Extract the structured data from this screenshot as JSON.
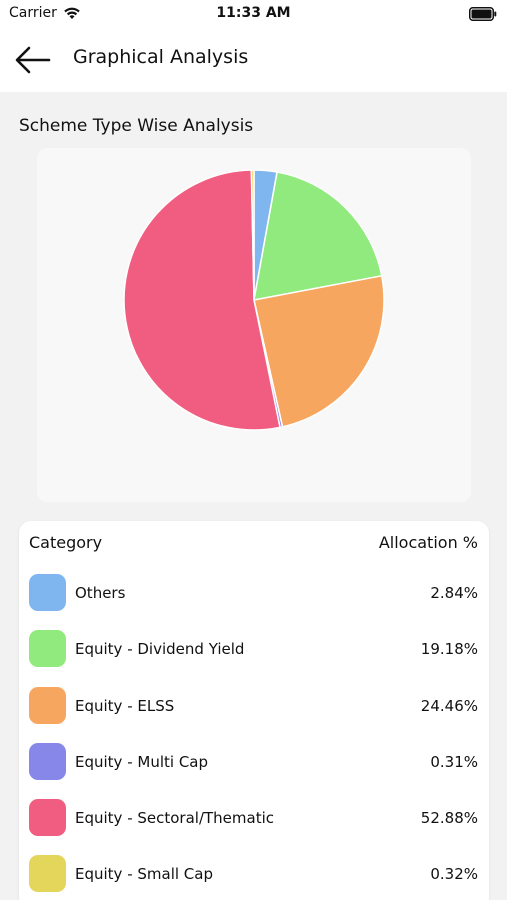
{
  "status_bar": {
    "carrier": "Carrier",
    "time": "11:33 AM"
  },
  "header": {
    "title": "Graphical Analysis",
    "back_icon": "arrow-left-icon"
  },
  "section": {
    "title": "Scheme Type Wise Analysis"
  },
  "table": {
    "col_category": "Category",
    "col_allocation": "Allocation %",
    "rows": [
      {
        "label": "Others",
        "value": "2.84%",
        "color": "#7fb6ef"
      },
      {
        "label": "Equity - Dividend Yield",
        "value": "19.18%",
        "color": "#90ea7e"
      },
      {
        "label": "Equity - ELSS",
        "value": "24.46%",
        "color": "#f7a660"
      },
      {
        "label": "Equity - Multi Cap",
        "value": "0.31%",
        "color": "#8787ea"
      },
      {
        "label": "Equity - Sectoral/Thematic",
        "value": "52.88%",
        "color": "#f15d80"
      },
      {
        "label": "Equity - Small Cap",
        "value": "0.32%",
        "color": "#e3d65a"
      }
    ]
  },
  "chart_data": {
    "type": "pie",
    "categories": [
      "Others",
      "Equity - Dividend Yield",
      "Equity - ELSS",
      "Equity - Multi Cap",
      "Equity - Sectoral/Thematic",
      "Equity - Small Cap"
    ],
    "values": [
      2.84,
      19.18,
      24.46,
      0.31,
      52.88,
      0.32
    ],
    "colors": [
      "#7fb6ef",
      "#90ea7e",
      "#f7a660",
      "#8787ea",
      "#f15d80",
      "#e3d65a"
    ],
    "start_angle_deg": 0,
    "title": ""
  }
}
